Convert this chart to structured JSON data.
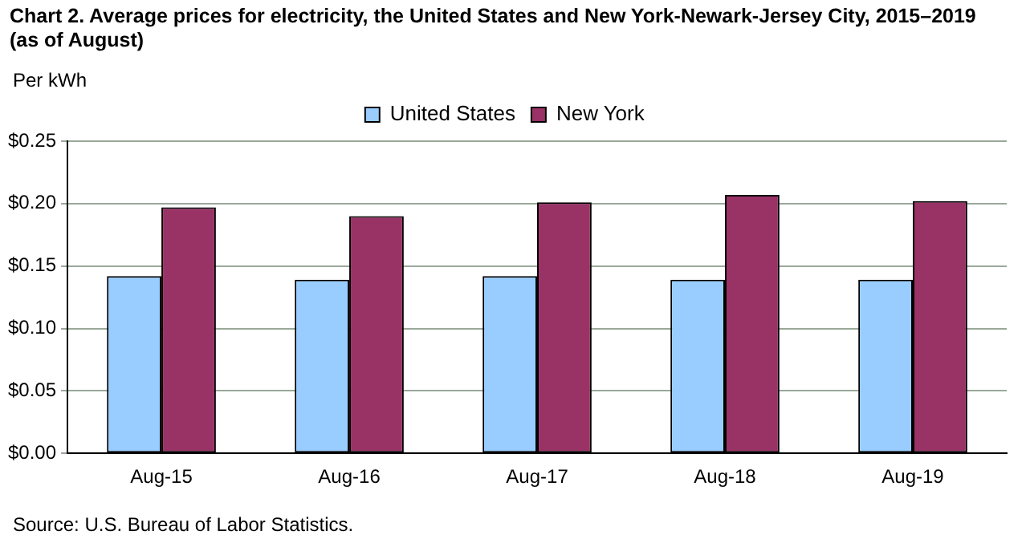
{
  "chart_data": {
    "type": "bar",
    "title": "Chart 2. Average prices for electricity, the United States and New York-Newark-Jersey  City, 2015–2019  (as of August)",
    "ylabel": "Per kWh",
    "categories": [
      "Aug-15",
      "Aug-16",
      "Aug-17",
      "Aug-18",
      "Aug-19"
    ],
    "series": [
      {
        "name": "United States",
        "color": "#99ccff",
        "values": [
          0.142,
          0.139,
          0.142,
          0.139,
          0.139
        ]
      },
      {
        "name": "New York",
        "color": "#993366",
        "values": [
          0.197,
          0.19,
          0.201,
          0.207,
          0.202
        ]
      }
    ],
    "ylim": [
      0,
      0.25
    ],
    "yticks": [
      {
        "value": 0,
        "label": "$0.00"
      },
      {
        "value": 0.05,
        "label": "$0.05"
      },
      {
        "value": 0.1,
        "label": "$0.10"
      },
      {
        "value": 0.15,
        "label": "$0.15"
      },
      {
        "value": 0.2,
        "label": "$0.20"
      },
      {
        "value": 0.25,
        "label": "$0.25"
      }
    ],
    "grid": "y",
    "legend": "top",
    "annotations": [
      "Source: U.S. Bureau of Labor Statistics."
    ]
  }
}
